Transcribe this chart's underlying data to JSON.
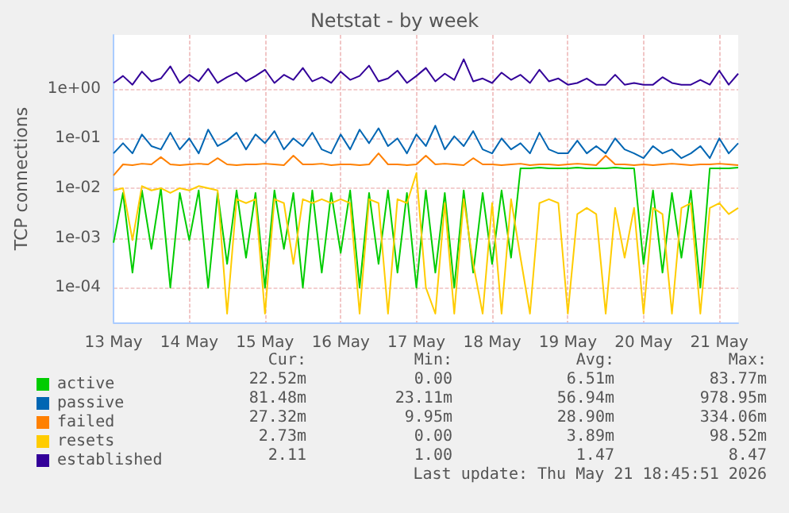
{
  "chart_data": {
    "type": "line",
    "title": "Netstat - by week",
    "ylabel": "TCP connections",
    "log": "y",
    "grid": true,
    "legend": "bottom left",
    "marker": "none",
    "line_style": "solid",
    "x": [
      "2026-05-13T00:00",
      "2026-05-13T03:00",
      "2026-05-13T06:00",
      "2026-05-13T09:00",
      "2026-05-13T12:00",
      "2026-05-13T15:00",
      "2026-05-13T18:00",
      "2026-05-13T21:00",
      "2026-05-14T00:00",
      "2026-05-14T03:00",
      "2026-05-14T06:00",
      "2026-05-14T09:00",
      "2026-05-14T12:00",
      "2026-05-14T15:00",
      "2026-05-14T18:00",
      "2026-05-14T21:00",
      "2026-05-15T00:00",
      "2026-05-15T03:00",
      "2026-05-15T06:00",
      "2026-05-15T09:00",
      "2026-05-15T12:00",
      "2026-05-15T15:00",
      "2026-05-15T18:00",
      "2026-05-15T21:00",
      "2026-05-16T00:00",
      "2026-05-16T03:00",
      "2026-05-16T06:00",
      "2026-05-16T09:00",
      "2026-05-16T12:00",
      "2026-05-16T15:00",
      "2026-05-16T18:00",
      "2026-05-16T21:00",
      "2026-05-17T00:00",
      "2026-05-17T03:00",
      "2026-05-17T06:00",
      "2026-05-17T09:00",
      "2026-05-17T12:00",
      "2026-05-17T15:00",
      "2026-05-17T18:00",
      "2026-05-17T21:00",
      "2026-05-18T00:00",
      "2026-05-18T03:00",
      "2026-05-18T06:00",
      "2026-05-18T09:00",
      "2026-05-18T12:00",
      "2026-05-18T15:00",
      "2026-05-18T18:00",
      "2026-05-18T21:00",
      "2026-05-19T00:00",
      "2026-05-19T03:00",
      "2026-05-19T06:00",
      "2026-05-19T09:00",
      "2026-05-19T12:00",
      "2026-05-19T15:00",
      "2026-05-19T18:00",
      "2026-05-19T21:00",
      "2026-05-20T00:00",
      "2026-05-20T03:00",
      "2026-05-20T06:00",
      "2026-05-20T09:00",
      "2026-05-20T12:00",
      "2026-05-20T15:00",
      "2026-05-20T18:00",
      "2026-05-20T21:00",
      "2026-05-21T00:00",
      "2026-05-21T03:00",
      "2026-05-21T06:00"
    ],
    "xlim": [
      "2026-05-13T00:00",
      "2026-05-21T06:00"
    ],
    "xticks": [
      {
        "value": "2026-05-13",
        "label": "13 May"
      },
      {
        "value": "2026-05-14",
        "label": "14 May"
      },
      {
        "value": "2026-05-15",
        "label": "15 May"
      },
      {
        "value": "2026-05-16",
        "label": "16 May"
      },
      {
        "value": "2026-05-17",
        "label": "17 May"
      },
      {
        "value": "2026-05-18",
        "label": "18 May"
      },
      {
        "value": "2026-05-19",
        "label": "19 May"
      },
      {
        "value": "2026-05-20",
        "label": "20 May"
      },
      {
        "value": "2026-05-21",
        "label": "21 May"
      }
    ],
    "ylim": [
      2e-05,
      12
    ],
    "yticks": [
      {
        "value": 0.0001,
        "label": "1e-04"
      },
      {
        "value": 0.001,
        "label": "1e-03"
      },
      {
        "value": 0.01,
        "label": "1e-02"
      },
      {
        "value": 0.1,
        "label": "1e-01"
      },
      {
        "value": 1,
        "label": "1e+00"
      }
    ],
    "series": [
      {
        "name": "active",
        "color": "#00cc00",
        "values": [
          0.0008,
          0.008,
          0.0002,
          0.009,
          0.0006,
          0.01,
          0.0001,
          0.008,
          0.0009,
          0.009,
          0.0001,
          0.008,
          0.0003,
          0.009,
          0.0004,
          0.008,
          0.0001,
          0.009,
          0.0006,
          0.008,
          0.0001,
          0.009,
          0.0002,
          0.008,
          0.0005,
          0.009,
          0.0001,
          0.008,
          0.0003,
          0.009,
          0.0002,
          0.008,
          0.0001,
          0.009,
          0.0002,
          0.008,
          0.0001,
          0.009,
          0.0002,
          0.008,
          0.0003,
          0.009,
          0.0004,
          0.025,
          0.025,
          0.026,
          0.025,
          0.025,
          0.025,
          0.026,
          0.025,
          0.025,
          0.025,
          0.026,
          0.025,
          0.025,
          0.0003,
          0.009,
          0.0002,
          0.008,
          0.0004,
          0.009,
          0.0001,
          0.025,
          0.025,
          0.025,
          0.026
        ]
      },
      {
        "name": "passive",
        "color": "#0066b3",
        "values": [
          0.05,
          0.08,
          0.05,
          0.12,
          0.07,
          0.06,
          0.13,
          0.06,
          0.1,
          0.05,
          0.15,
          0.07,
          0.09,
          0.13,
          0.06,
          0.12,
          0.08,
          0.14,
          0.06,
          0.1,
          0.07,
          0.13,
          0.06,
          0.05,
          0.12,
          0.06,
          0.15,
          0.08,
          0.16,
          0.07,
          0.1,
          0.05,
          0.12,
          0.07,
          0.18,
          0.06,
          0.11,
          0.07,
          0.14,
          0.06,
          0.05,
          0.1,
          0.06,
          0.08,
          0.05,
          0.13,
          0.06,
          0.05,
          0.05,
          0.09,
          0.05,
          0.07,
          0.05,
          0.1,
          0.06,
          0.05,
          0.04,
          0.07,
          0.05,
          0.06,
          0.04,
          0.05,
          0.07,
          0.04,
          0.1,
          0.05,
          0.08
        ]
      },
      {
        "name": "failed",
        "color": "#ff8000",
        "values": [
          0.018,
          0.03,
          0.029,
          0.031,
          0.03,
          0.042,
          0.03,
          0.029,
          0.03,
          0.031,
          0.03,
          0.04,
          0.03,
          0.029,
          0.03,
          0.03,
          0.031,
          0.03,
          0.029,
          0.045,
          0.03,
          0.03,
          0.031,
          0.029,
          0.03,
          0.03,
          0.029,
          0.03,
          0.05,
          0.03,
          0.03,
          0.029,
          0.03,
          0.045,
          0.03,
          0.031,
          0.03,
          0.029,
          0.04,
          0.03,
          0.03,
          0.029,
          0.03,
          0.031,
          0.029,
          0.03,
          0.03,
          0.029,
          0.03,
          0.031,
          0.03,
          0.029,
          0.045,
          0.03,
          0.03,
          0.029,
          0.03,
          0.029,
          0.03,
          0.031,
          0.03,
          0.029,
          0.03,
          0.03,
          0.031,
          0.03,
          0.029
        ]
      },
      {
        "name": "resets",
        "color": "#ffcc00",
        "values": [
          0.009,
          0.01,
          0.0009,
          0.011,
          0.009,
          0.01,
          0.008,
          0.01,
          0.009,
          0.011,
          0.01,
          0.009,
          3e-05,
          0.006,
          0.005,
          0.006,
          3e-05,
          0.006,
          0.005,
          0.0003,
          0.006,
          0.005,
          0.006,
          0.005,
          0.006,
          0.005,
          3e-05,
          0.006,
          0.005,
          3e-05,
          0.006,
          0.005,
          0.02,
          0.0001,
          3e-05,
          0.005,
          3e-05,
          0.006,
          0.0003,
          3e-05,
          0.005,
          3e-05,
          0.006,
          0.0004,
          3e-05,
          0.005,
          0.006,
          0.005,
          3e-05,
          0.003,
          0.004,
          0.003,
          3e-05,
          0.004,
          0.0004,
          0.004,
          3e-05,
          0.004,
          0.003,
          3e-05,
          0.004,
          0.005,
          3e-05,
          0.004,
          0.005,
          0.003,
          0.004
        ]
      },
      {
        "name": "established",
        "color": "#330099",
        "values": [
          1.3,
          1.8,
          1.2,
          2.2,
          1.4,
          1.6,
          2.8,
          1.3,
          1.9,
          1.4,
          2.5,
          1.3,
          1.7,
          2.1,
          1.4,
          1.8,
          2.4,
          1.3,
          1.9,
          1.5,
          2.6,
          1.4,
          1.7,
          1.3,
          2.2,
          1.5,
          1.8,
          2.9,
          1.4,
          1.6,
          2.3,
          1.3,
          1.8,
          2.6,
          1.4,
          2.0,
          1.5,
          3.9,
          1.4,
          1.6,
          1.3,
          2.1,
          1.5,
          1.9,
          1.3,
          2.4,
          1.4,
          1.6,
          1.2,
          1.3,
          1.6,
          1.2,
          1.2,
          1.9,
          1.2,
          1.3,
          1.2,
          1.2,
          1.7,
          1.3,
          1.2,
          1.2,
          1.5,
          1.2,
          2.3,
          1.2,
          2.0
        ]
      }
    ],
    "annotations": [
      "Cur:",
      "Min:",
      "Avg:",
      "Max:",
      "22.52m",
      "0.00",
      "6.51m",
      "83.77m",
      "81.48m",
      "23.11m",
      "56.94m",
      "978.95m",
      "27.32m",
      "9.95m",
      "28.90m",
      "334.06m",
      "2.73m",
      "0.00",
      "3.89m",
      "98.52m",
      "2.11",
      "1.00",
      "1.47",
      "8.47",
      "Last update: Thu May 21 18:45:51 2026"
    ]
  }
}
